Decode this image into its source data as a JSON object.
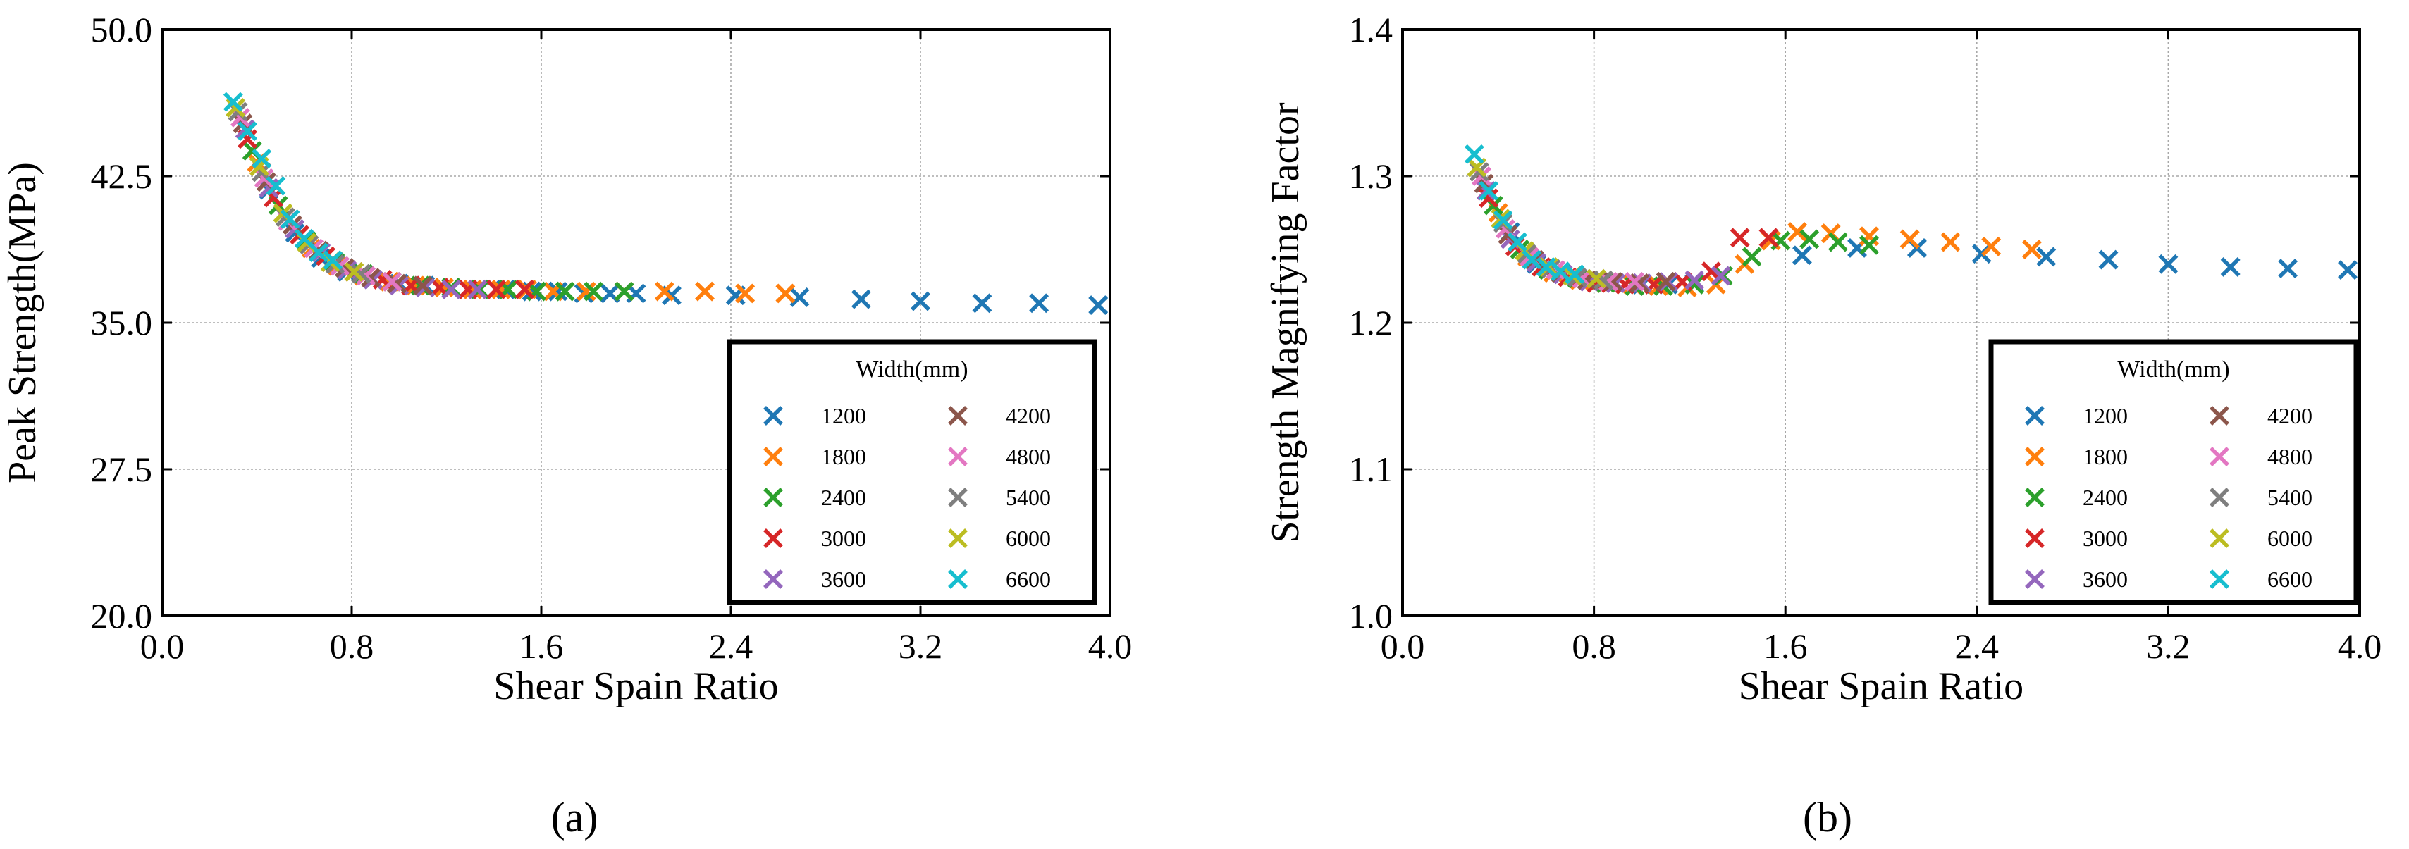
{
  "colors": {
    "1200": "#1f77b4",
    "1800": "#ff7f0e",
    "2400": "#2ca02c",
    "3000": "#d62728",
    "3600": "#9467bd",
    "4200": "#8c564b",
    "4800": "#e377c2",
    "5400": "#7f7f7f",
    "6000": "#bcbd22",
    "6600": "#17becf"
  },
  "chart_data": [
    {
      "type": "scatter",
      "panel_label": "(a)",
      "xlabel": "Shear Spain Ratio",
      "ylabel": "Peak Strength(MPa)",
      "xlim": [
        0.0,
        4.0
      ],
      "ylim": [
        20.0,
        50.0
      ],
      "xticks": [
        "0.0",
        "0.8",
        "1.6",
        "2.4",
        "3.2",
        "4.0"
      ],
      "xtick_values": [
        0.0,
        0.8,
        1.6,
        2.4,
        3.2,
        4.0
      ],
      "yticks": [
        "20.0",
        "27.5",
        "35.0",
        "42.5",
        "50.0"
      ],
      "ytick_values": [
        20.0,
        27.5,
        35.0,
        42.5,
        50.0
      ],
      "grid": true,
      "legend": {
        "title": "Width(mm)",
        "position": "bottom-right",
        "columns": 2
      },
      "series": [
        {
          "name": "1200",
          "x": [
            0.45,
            0.56,
            0.67,
            0.78,
            0.89,
            1.0,
            1.11,
            1.22,
            1.34,
            1.45,
            1.56,
            1.67,
            1.78,
            1.89,
            2.0,
            2.15,
            2.42,
            2.69,
            2.95,
            3.2,
            3.46,
            3.7,
            3.95
          ],
          "y": [
            41.8,
            39.6,
            38.3,
            37.6,
            37.2,
            37.0,
            36.9,
            36.8,
            36.7,
            36.7,
            36.6,
            36.6,
            36.5,
            36.5,
            36.5,
            36.4,
            36.4,
            36.3,
            36.2,
            36.1,
            36.0,
            36.0,
            35.9
          ]
        },
        {
          "name": "1800",
          "x": [
            0.4,
            0.52,
            0.63,
            0.74,
            0.85,
            0.96,
            1.07,
            1.19,
            1.31,
            1.43,
            1.54,
            1.65,
            1.79,
            1.95,
            2.12,
            2.29,
            2.46,
            2.63
          ],
          "y": [
            43.2,
            40.4,
            38.8,
            37.9,
            37.4,
            37.1,
            36.9,
            36.8,
            36.7,
            36.7,
            36.7,
            36.6,
            36.6,
            36.6,
            36.6,
            36.6,
            36.5,
            36.5
          ]
        },
        {
          "name": "2400",
          "x": [
            0.38,
            0.49,
            0.61,
            0.73,
            0.85,
            0.97,
            1.09,
            1.22,
            1.34,
            1.46,
            1.58,
            1.7,
            1.82,
            1.95
          ],
          "y": [
            43.8,
            41.0,
            39.2,
            38.1,
            37.5,
            37.1,
            36.9,
            36.8,
            36.7,
            36.7,
            36.6,
            36.6,
            36.6,
            36.6
          ]
        },
        {
          "name": "3000",
          "x": [
            0.36,
            0.47,
            0.58,
            0.69,
            0.81,
            0.93,
            1.05,
            1.17,
            1.29,
            1.41,
            1.53
          ],
          "y": [
            44.4,
            41.4,
            39.5,
            38.4,
            37.6,
            37.2,
            36.9,
            36.8,
            36.7,
            36.7,
            36.7
          ]
        },
        {
          "name": "3600",
          "x": [
            0.35,
            0.45,
            0.56,
            0.67,
            0.78,
            0.89,
            1.0,
            1.11,
            1.22,
            1.33
          ],
          "y": [
            44.9,
            41.9,
            39.8,
            38.6,
            37.7,
            37.2,
            36.9,
            36.8,
            36.7,
            36.7
          ]
        },
        {
          "name": "4200",
          "x": [
            0.34,
            0.44,
            0.55,
            0.66,
            0.77,
            0.88,
            0.99,
            1.1
          ],
          "y": [
            45.2,
            42.2,
            40.0,
            38.7,
            37.8,
            37.3,
            37.0,
            36.9
          ]
        },
        {
          "name": "4800",
          "x": [
            0.33,
            0.43,
            0.53,
            0.64,
            0.75,
            0.86,
            0.97
          ],
          "y": [
            45.5,
            42.4,
            40.2,
            38.8,
            37.9,
            37.4,
            37.1
          ]
        },
        {
          "name": "5400",
          "x": [
            0.32,
            0.42,
            0.52,
            0.62,
            0.73,
            0.84
          ],
          "y": [
            45.8,
            42.7,
            40.4,
            39.0,
            38.0,
            37.5
          ]
        },
        {
          "name": "6000",
          "x": [
            0.31,
            0.41,
            0.51,
            0.61,
            0.71,
            0.81
          ],
          "y": [
            46.0,
            43.0,
            40.6,
            39.1,
            38.1,
            37.6
          ]
        },
        {
          "name": "6600",
          "x": [
            0.3,
            0.36,
            0.42,
            0.48,
            0.54,
            0.6,
            0.66,
            0.72
          ],
          "y": [
            46.3,
            44.8,
            43.4,
            42.0,
            40.3,
            39.3,
            38.6,
            38.2
          ]
        }
      ]
    },
    {
      "type": "scatter",
      "panel_label": "(b)",
      "xlabel": "Shear Spain Ratio",
      "ylabel": "Strength Magnifying Factor",
      "xlim": [
        0.0,
        4.0
      ],
      "ylim": [
        1.0,
        1.4
      ],
      "xticks": [
        "0.0",
        "0.8",
        "1.6",
        "2.4",
        "3.2",
        "4.0"
      ],
      "xtick_values": [
        0.0,
        0.8,
        1.6,
        2.4,
        3.2,
        4.0
      ],
      "yticks": [
        "1.0",
        "1.1",
        "1.2",
        "1.3",
        "1.4"
      ],
      "ytick_values": [
        1.0,
        1.1,
        1.2,
        1.3,
        1.4
      ],
      "grid": true,
      "legend": {
        "title": "Width(mm)",
        "position": "bottom-right",
        "columns": 2
      },
      "series": [
        {
          "name": "1200",
          "x": [
            0.45,
            0.56,
            0.67,
            0.78,
            0.89,
            1.0,
            1.11,
            1.22,
            1.67,
            1.9,
            2.15,
            2.42,
            2.69,
            2.95,
            3.2,
            3.46,
            3.7,
            3.95
          ],
          "y": [
            1.262,
            1.24,
            1.233,
            1.229,
            1.227,
            1.226,
            1.226,
            1.227,
            1.246,
            1.251,
            1.251,
            1.247,
            1.245,
            1.243,
            1.24,
            1.238,
            1.237,
            1.236
          ]
        },
        {
          "name": "1800",
          "x": [
            0.4,
            0.52,
            0.63,
            0.74,
            0.85,
            0.96,
            1.07,
            1.19,
            1.31,
            1.43,
            1.54,
            1.65,
            1.79,
            1.95,
            2.12,
            2.29,
            2.46,
            2.63
          ],
          "y": [
            1.275,
            1.245,
            1.234,
            1.229,
            1.227,
            1.226,
            1.225,
            1.224,
            1.226,
            1.24,
            1.256,
            1.262,
            1.261,
            1.259,
            1.257,
            1.255,
            1.252,
            1.25
          ]
        },
        {
          "name": "2400",
          "x": [
            0.38,
            0.49,
            0.61,
            0.73,
            0.85,
            0.97,
            1.09,
            1.22,
            1.34,
            1.46,
            1.58,
            1.7,
            1.82,
            1.95
          ],
          "y": [
            1.28,
            1.25,
            1.236,
            1.23,
            1.227,
            1.225,
            1.225,
            1.226,
            1.232,
            1.245,
            1.256,
            1.257,
            1.255,
            1.253
          ]
        },
        {
          "name": "3000",
          "x": [
            0.36,
            0.47,
            0.58,
            0.69,
            0.81,
            0.93,
            1.05,
            1.17,
            1.29,
            1.41,
            1.53
          ],
          "y": [
            1.285,
            1.252,
            1.238,
            1.231,
            1.227,
            1.226,
            1.226,
            1.228,
            1.235,
            1.258,
            1.258
          ]
        },
        {
          "name": "3600",
          "x": [
            0.35,
            0.45,
            0.56,
            0.67,
            0.78,
            0.89,
            1.0,
            1.11,
            1.22,
            1.33
          ],
          "y": [
            1.29,
            1.257,
            1.241,
            1.233,
            1.228,
            1.227,
            1.227,
            1.228,
            1.229,
            1.232
          ]
        },
        {
          "name": "4200",
          "x": [
            0.34,
            0.44,
            0.55,
            0.66,
            0.77,
            0.88,
            0.99,
            1.1
          ],
          "y": [
            1.295,
            1.26,
            1.243,
            1.234,
            1.229,
            1.228,
            1.227,
            1.228
          ]
        },
        {
          "name": "4800",
          "x": [
            0.33,
            0.43,
            0.53,
            0.64,
            0.75,
            0.86,
            0.97
          ],
          "y": [
            1.3,
            1.264,
            1.245,
            1.236,
            1.23,
            1.228,
            1.228
          ]
        },
        {
          "name": "5400",
          "x": [
            0.32,
            0.42,
            0.52,
            0.62,
            0.73,
            0.84
          ],
          "y": [
            1.303,
            1.268,
            1.247,
            1.237,
            1.231,
            1.229
          ]
        },
        {
          "name": "6000",
          "x": [
            0.31,
            0.41,
            0.51,
            0.61,
            0.71,
            0.81
          ],
          "y": [
            1.306,
            1.271,
            1.249,
            1.238,
            1.232,
            1.23
          ]
        },
        {
          "name": "6600",
          "x": [
            0.3,
            0.36,
            0.42,
            0.48,
            0.54,
            0.6,
            0.66,
            0.72
          ],
          "y": [
            1.315,
            1.29,
            1.27,
            1.255,
            1.243,
            1.238,
            1.235,
            1.233
          ]
        }
      ]
    }
  ]
}
